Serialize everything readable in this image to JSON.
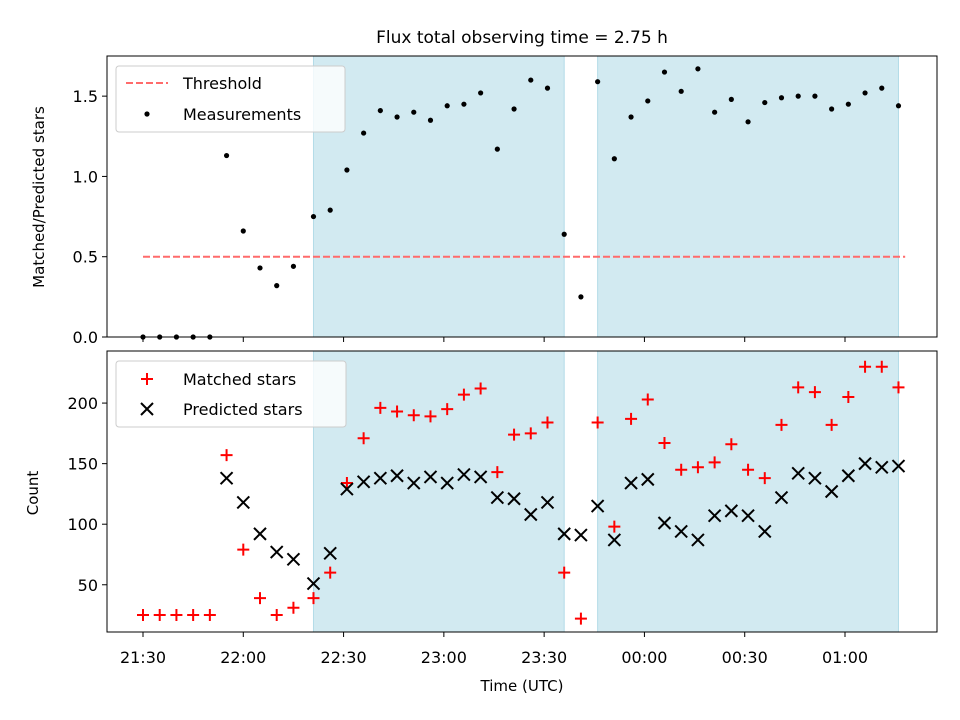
{
  "title": "Flux total observing time = 2.75 h",
  "colors": {
    "threshold": "#ff6b6b",
    "measurements": "#000000",
    "matched": "#ff0000",
    "predicted": "#000000",
    "observing_span": "#add8e6"
  },
  "chart_data": [
    {
      "type": "scatter",
      "panel": "top",
      "ylabel": "Matched/Predicted stars",
      "ylim": [
        0,
        1.75
      ],
      "yticks": [
        0.0,
        0.5,
        1.0,
        1.5
      ],
      "ytick_labels": [
        "0.0",
        "0.5",
        "1.0",
        "1.5"
      ],
      "x_is_minutes_since_2130": false,
      "legend": "top-left",
      "threshold": {
        "name": "Threshold",
        "value": 0.5,
        "x_start": "21:30",
        "x_end": "01:18"
      },
      "shaded_spans": [
        [
          "22:21",
          "23:36"
        ],
        [
          "23:46",
          "01:16"
        ]
      ],
      "series": [
        {
          "name": "Measurements",
          "marker": "dot",
          "x": [
            "21:30",
            "21:35",
            "21:40",
            "21:45",
            "21:50",
            "21:55",
            "22:00",
            "22:05",
            "22:10",
            "22:15",
            "22:21",
            "22:26",
            "22:31",
            "22:36",
            "22:41",
            "22:46",
            "22:51",
            "22:56",
            "23:01",
            "23:06",
            "23:11",
            "23:16",
            "23:21",
            "23:26",
            "23:31",
            "23:36",
            "23:41",
            "23:46",
            "23:51",
            "23:56",
            "00:01",
            "00:06",
            "00:11",
            "00:16",
            "00:21",
            "00:26",
            "00:31",
            "00:36",
            "00:41",
            "00:46",
            "00:51",
            "00:56",
            "01:01",
            "01:06",
            "01:11",
            "01:16"
          ],
          "values": [
            0.0,
            0.0,
            0.0,
            0.0,
            0.0,
            1.13,
            0.66,
            0.43,
            0.32,
            0.44,
            0.75,
            0.79,
            1.04,
            1.27,
            1.41,
            1.37,
            1.4,
            1.35,
            1.44,
            1.45,
            1.52,
            1.17,
            1.42,
            1.6,
            1.55,
            0.64,
            0.25,
            1.59,
            1.11,
            1.37,
            1.47,
            1.65,
            1.53,
            1.67,
            1.4,
            1.48,
            1.34,
            1.46,
            1.49,
            1.5,
            1.5,
            1.42,
            1.45,
            1.52,
            1.55,
            1.44
          ]
        }
      ]
    },
    {
      "type": "scatter",
      "panel": "bottom",
      "ylabel": "Count",
      "xlabel": "Time (UTC)",
      "ylim": [
        11,
        243
      ],
      "yticks": [
        50,
        100,
        150,
        200
      ],
      "ytick_labels": [
        "50",
        "100",
        "150",
        "200"
      ],
      "xticks": [
        "21:30",
        "22:00",
        "22:30",
        "23:00",
        "23:30",
        "00:00",
        "00:30",
        "01:00"
      ],
      "legend": "top-left",
      "shaded_spans": [
        [
          "22:21",
          "23:36"
        ],
        [
          "23:46",
          "01:16"
        ]
      ],
      "series": [
        {
          "name": "Matched stars",
          "marker": "plus",
          "x": [
            "21:30",
            "21:35",
            "21:40",
            "21:45",
            "21:50",
            "21:55",
            "22:00",
            "22:05",
            "22:10",
            "22:15",
            "22:21",
            "22:26",
            "22:31",
            "22:36",
            "22:41",
            "22:46",
            "22:51",
            "22:56",
            "23:01",
            "23:06",
            "23:11",
            "23:16",
            "23:21",
            "23:26",
            "23:31",
            "23:36",
            "23:41",
            "23:46",
            "23:51",
            "23:56",
            "00:01",
            "00:06",
            "00:11",
            "00:16",
            "00:21",
            "00:26",
            "00:31",
            "00:36",
            "00:41",
            "00:46",
            "00:51",
            "00:56",
            "01:01",
            "01:06",
            "01:11",
            "01:16"
          ],
          "values": [
            25,
            25,
            25,
            25,
            25,
            157,
            79,
            39,
            25,
            31,
            39,
            60,
            134,
            171,
            196,
            193,
            190,
            189,
            195,
            207,
            212,
            143,
            174,
            175,
            184,
            60,
            22,
            184,
            98,
            187,
            203,
            167,
            145,
            147,
            151,
            166,
            145,
            138,
            182,
            213,
            209,
            182,
            205,
            230,
            230,
            213
          ]
        },
        {
          "name": "Predicted stars",
          "marker": "x",
          "x": [
            "21:55",
            "22:00",
            "22:05",
            "22:10",
            "22:15",
            "22:21",
            "22:26",
            "22:31",
            "22:36",
            "22:41",
            "22:46",
            "22:51",
            "22:56",
            "23:01",
            "23:06",
            "23:11",
            "23:16",
            "23:21",
            "23:26",
            "23:31",
            "23:36",
            "23:41",
            "23:46",
            "23:51",
            "23:56",
            "00:01",
            "00:06",
            "00:11",
            "00:16",
            "00:21",
            "00:26",
            "00:31",
            "00:36",
            "00:41",
            "00:46",
            "00:51",
            "00:56",
            "01:01",
            "01:06",
            "01:11",
            "01:16"
          ],
          "values": [
            138,
            118,
            92,
            77,
            71,
            51,
            76,
            129,
            135,
            138,
            140,
            134,
            139,
            134,
            141,
            139,
            122,
            121,
            108,
            118,
            92,
            91,
            115,
            87,
            134,
            137,
            101,
            94,
            87,
            107,
            111,
            107,
            94,
            122,
            142,
            138,
            127,
            140,
            150,
            147,
            148
          ]
        }
      ]
    }
  ]
}
